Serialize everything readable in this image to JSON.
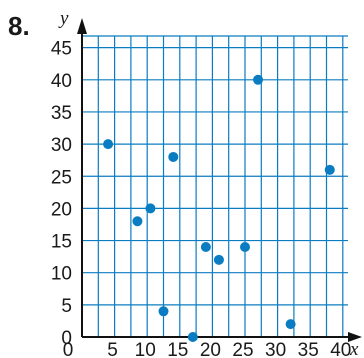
{
  "problem_number": "8.",
  "chart_data": {
    "type": "scatter",
    "xlabel": "x",
    "ylabel": "y",
    "xlim": [
      0,
      42
    ],
    "ylim": [
      0,
      47
    ],
    "grid": true,
    "x_ticks": [
      0,
      5,
      10,
      15,
      20,
      25,
      30,
      35,
      40
    ],
    "y_ticks": [
      0,
      5,
      10,
      15,
      20,
      25,
      30,
      35,
      40,
      45
    ],
    "x_tick_labels": [
      "0",
      "5",
      "10",
      "15",
      "20",
      "25",
      "30",
      "35",
      "40"
    ],
    "y_tick_labels": [
      "0",
      "5",
      "10",
      "15",
      "20",
      "25",
      "30",
      "35",
      "40",
      "45"
    ],
    "point_color": "#0a7cc1",
    "points": [
      {
        "x": 4,
        "y": 30
      },
      {
        "x": 8.5,
        "y": 18
      },
      {
        "x": 10.5,
        "y": 20
      },
      {
        "x": 12.5,
        "y": 4
      },
      {
        "x": 14,
        "y": 28
      },
      {
        "x": 17,
        "y": 0
      },
      {
        "x": 19,
        "y": 14
      },
      {
        "x": 21,
        "y": 12
      },
      {
        "x": 25,
        "y": 14
      },
      {
        "x": 27,
        "y": 40
      },
      {
        "x": 32,
        "y": 2
      },
      {
        "x": 38,
        "y": 26
      }
    ]
  }
}
